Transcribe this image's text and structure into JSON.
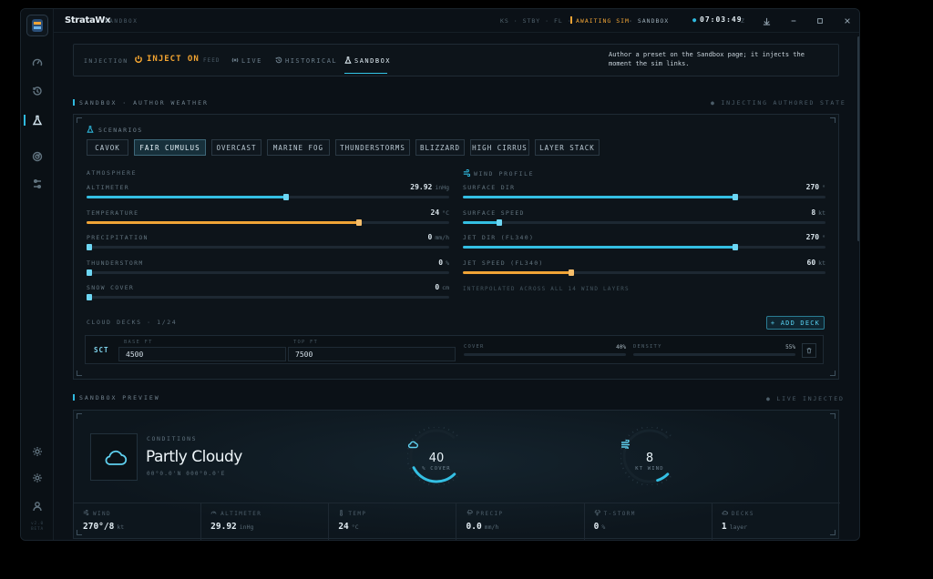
{
  "app": {
    "name": "StrataWx",
    "context": "SANDBOX"
  },
  "titlebar": {
    "station": "KS · STBY · FL ·",
    "status": "AWAITING SIM",
    "mode": "· SANDBOX",
    "clock": "07:03:49",
    "clock_suffix": "Z"
  },
  "sidebar": {
    "items": [
      "gauge-icon",
      "history-icon",
      "flask-icon",
      "radar-icon",
      "sliders-icon"
    ],
    "bottom": [
      "sun-icon",
      "settings-icon",
      "user-icon"
    ],
    "version": "v2.0 BETA"
  },
  "injection": {
    "label": "INJECTION",
    "state": "INJECT ON",
    "state_sub": "FEED",
    "modes": [
      {
        "label": "LIVE"
      },
      {
        "label": "HISTORICAL"
      },
      {
        "label": "SANDBOX"
      }
    ],
    "note": "Author a preset on the Sandbox page; it injects the moment the sim links."
  },
  "sandbox_section": {
    "title": "SANDBOX · AUTHOR WEATHER",
    "right": "● INJECTING AUTHORED STATE"
  },
  "scenarios": {
    "label": "SCENARIOS",
    "items": [
      "CAVOK",
      "FAIR CUMULUS",
      "OVERCAST",
      "MARINE FOG",
      "THUNDERSTORMS",
      "BLIZZARD",
      "HIGH CIRRUS",
      "LAYER STACK"
    ],
    "selected": "FAIR CUMULUS"
  },
  "atmosphere": {
    "label": "ATMOSPHERE",
    "sliders": [
      {
        "label": "ALTIMETER",
        "value": "29.92",
        "unit": "inHg",
        "fraction": 0.55,
        "color": "#34bfe3"
      },
      {
        "label": "TEMPERATURE",
        "value": "24",
        "unit": "°C",
        "fraction": 0.75,
        "color": "#f0a436"
      },
      {
        "label": "PRECIPITATION",
        "value": "0",
        "unit": "mm/h",
        "fraction": 0.0,
        "color": "#34bfe3"
      },
      {
        "label": "THUNDERSTORM",
        "value": "0",
        "unit": "%",
        "fraction": 0.0,
        "color": "#34bfe3"
      },
      {
        "label": "SNOW COVER",
        "value": "0",
        "unit": "cm",
        "fraction": 0.0,
        "color": "#34bfe3"
      }
    ]
  },
  "wind": {
    "label": "WIND PROFILE",
    "sliders": [
      {
        "label": "SURFACE DIR",
        "value": "270",
        "unit": "°",
        "fraction": 0.75,
        "color": "#34bfe3"
      },
      {
        "label": "SURFACE SPEED",
        "value": "8",
        "unit": "kt",
        "fraction": 0.1,
        "color": "#34bfe3"
      },
      {
        "label": "JET DIR (FL340)",
        "value": "270",
        "unit": "°",
        "fraction": 0.75,
        "color": "#34bfe3"
      },
      {
        "label": "JET SPEED (FL340)",
        "value": "60",
        "unit": "kt",
        "fraction": 0.3,
        "color": "#f0a436"
      }
    ],
    "note": "INTERPOLATED ACROSS ALL 14 WIND LAYERS"
  },
  "cloud_decks": {
    "label": "CLOUD DECKS · 1/24",
    "add_label": "+ ADD DECK",
    "decks": [
      {
        "type": "SCT",
        "base_label": "BASE FT",
        "base": "4500",
        "top_label": "TOP FT",
        "top": "7500",
        "cover_label": "COVER",
        "cover": "40%",
        "cover_frac": 0.4,
        "density_label": "DENSITY",
        "density": "55%",
        "density_frac": 0.55
      }
    ]
  },
  "preview_section": {
    "title": "SANDBOX PREVIEW",
    "right": "● LIVE INJECTED"
  },
  "preview": {
    "conditions_label": "CONDITIONS",
    "conditions": "Partly Cloudy",
    "coords": "00°0.0'N 000°0.0'E",
    "cover_value": "40",
    "cover_label": "% COVER",
    "cover_frac": 0.4,
    "wind_value": "8",
    "wind_label": "KT WIND",
    "wind_frac": 0.1
  },
  "stats": [
    {
      "label": "WIND",
      "value": "270°/8",
      "unit": "kt",
      "icon": "wind-icon"
    },
    {
      "label": "ALTIMETER",
      "value": "29.92",
      "unit": "inHg",
      "icon": "gauge-icon"
    },
    {
      "label": "TEMP",
      "value": "24",
      "unit": "°C",
      "icon": "thermometer-icon"
    },
    {
      "label": "PRECIP",
      "value": "0.0",
      "unit": "mm/h",
      "icon": "rain-icon"
    },
    {
      "label": "T-STORM",
      "value": "0",
      "unit": "%",
      "icon": "storm-icon"
    },
    {
      "label": "DECKS",
      "value": "1",
      "unit": "layer",
      "icon": "cloud-icon"
    }
  ]
}
